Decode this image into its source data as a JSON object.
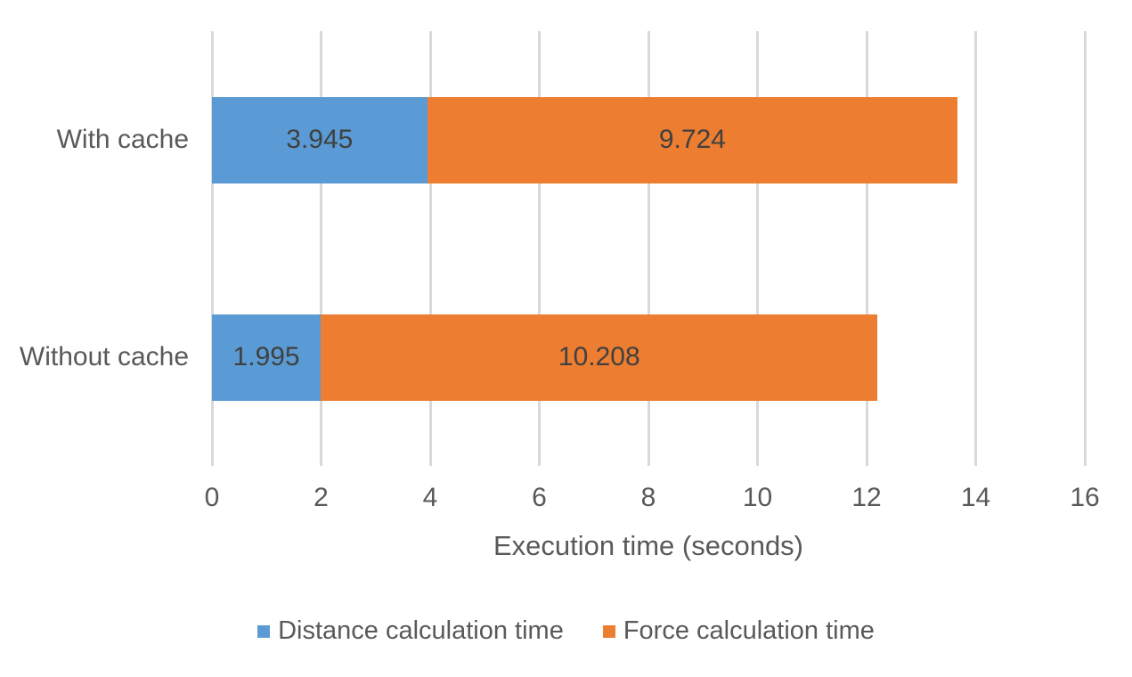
{
  "chart_data": {
    "type": "bar",
    "orientation": "horizontal",
    "stacked": true,
    "title": "",
    "xlabel": "Execution time (seconds)",
    "ylabel": "",
    "categories": [
      "With cache",
      "Without cache"
    ],
    "series": [
      {
        "name": "Distance calculation time",
        "color": "#5B9BD5",
        "values": [
          3.945,
          1.995
        ],
        "labels": [
          "3.945",
          "1.995"
        ]
      },
      {
        "name": "Force calculation time",
        "color": "#ED7D31",
        "values": [
          9.724,
          10.208
        ],
        "labels": [
          "9.724",
          "10.208"
        ]
      }
    ],
    "xlim": [
      0,
      16
    ],
    "xticks": [
      0,
      2,
      4,
      6,
      8,
      10,
      12,
      14,
      16
    ],
    "grid": true,
    "legend_position": "bottom",
    "data_labels": true
  },
  "style": {
    "background": "#FFFFFF",
    "gridline_color": "#D9D9D9",
    "axis_text_color": "#595959",
    "data_label_color": "#404040"
  }
}
